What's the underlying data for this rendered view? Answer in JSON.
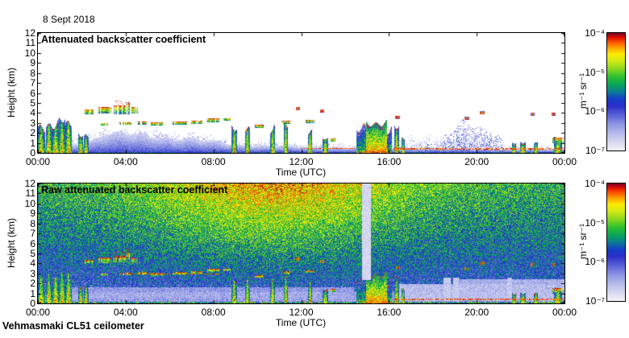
{
  "page": {
    "date_label": "8 Sept 2018",
    "footer": "Vehmasmaki CL51 ceilometer"
  },
  "chart_data": {
    "type": "heatmap",
    "x": {
      "label": "Time (UTC)",
      "ticks": [
        "00:00",
        "04:00",
        "08:00",
        "12:00",
        "16:00",
        "20:00",
        "00:00"
      ],
      "range_hours": [
        0,
        24
      ]
    },
    "y": {
      "label": "Height (km)",
      "ticks": [
        0,
        1,
        2,
        3,
        4,
        5,
        6,
        7,
        8,
        9,
        10,
        11,
        12
      ],
      "range_km": [
        0,
        12
      ]
    },
    "colorbar": {
      "tick_labels": [
        "10⁻⁴",
        "10⁻⁵",
        "10⁻⁶",
        "10⁻⁷"
      ],
      "unit": "m⁻¹ sr⁻¹",
      "scale": "log",
      "range": [
        1e-07,
        0.0001
      ]
    },
    "panels": [
      {
        "id": "top",
        "title": "Attenuated backscatter coefficient"
      },
      {
        "id": "bottom",
        "title": "Raw attenuated backscatter coefficient"
      }
    ],
    "colormap": [
      [
        0.0,
        "#f2f1f8"
      ],
      [
        0.06,
        "#dcdcf2"
      ],
      [
        0.14,
        "#b8bdec"
      ],
      [
        0.22,
        "#8f97e4"
      ],
      [
        0.3,
        "#5a62d8"
      ],
      [
        0.38,
        "#2b2fc8"
      ],
      [
        0.44,
        "#1440c8"
      ],
      [
        0.5,
        "#0a7d96"
      ],
      [
        0.56,
        "#0aa55a"
      ],
      [
        0.63,
        "#2fc22f"
      ],
      [
        0.7,
        "#8fd91e"
      ],
      [
        0.77,
        "#d8ea14"
      ],
      [
        0.82,
        "#fced06"
      ],
      [
        0.87,
        "#fdae00"
      ],
      [
        0.92,
        "#fc5d00"
      ],
      [
        0.96,
        "#e81600"
      ],
      [
        1.0,
        "#7e0024"
      ]
    ],
    "features": {
      "layer": {
        "solid": [
          [
            0,
            0.8
          ],
          [
            1.6,
            0.9
          ],
          [
            2.4,
            1.2
          ],
          [
            3.0,
            1.75
          ],
          [
            4.0,
            1.9
          ],
          [
            5.0,
            1.75
          ],
          [
            6.0,
            1.55
          ],
          [
            7.0,
            1.35
          ],
          [
            8.0,
            1.1
          ],
          [
            9.0,
            0.85
          ],
          [
            11,
            0.65
          ],
          [
            13,
            0.5
          ],
          [
            14.4,
            0.55
          ],
          [
            16.3,
            0.5
          ],
          [
            18,
            0.45
          ],
          [
            19.5,
            0.4
          ],
          [
            20.5,
            0.35
          ],
          [
            24,
            0.35
          ]
        ],
        "speckle": [
          [
            0,
            1.4
          ],
          [
            2,
            2.0
          ],
          [
            3,
            2.6
          ],
          [
            4.5,
            2.55
          ],
          [
            6,
            2.3
          ],
          [
            7,
            2.05
          ],
          [
            8,
            1.7
          ],
          [
            9,
            1.4
          ],
          [
            11,
            1.25
          ],
          [
            13,
            1.1
          ],
          [
            14.4,
            0.9
          ],
          [
            16.3,
            1.8
          ],
          [
            17.2,
            2.1
          ],
          [
            19,
            1.2
          ],
          [
            21,
            0.9
          ],
          [
            24,
            0.7
          ]
        ]
      },
      "virga": {
        "t0": 17.3,
        "t1": 21.3,
        "pts": [
          [
            17.3,
            0.6
          ],
          [
            18.2,
            1.2
          ],
          [
            19.0,
            2.2
          ],
          [
            19.5,
            3.3
          ],
          [
            19.9,
            2.8
          ],
          [
            20.6,
            2.5
          ],
          [
            21.0,
            1.9
          ],
          [
            21.3,
            0.8
          ]
        ]
      },
      "streaks": [
        {
          "t": 0.15,
          "w": 0.35,
          "top": 2.4
        },
        {
          "t": 0.5,
          "w": 0.3,
          "top": 3.0
        },
        {
          "t": 0.8,
          "w": 0.35,
          "top": 3.4
        },
        {
          "t": 1.1,
          "w": 0.3,
          "top": 3.5
        },
        {
          "t": 1.4,
          "w": 0.3,
          "top": 2.7
        },
        {
          "t": 1.95,
          "w": 0.25,
          "top": 2.2
        },
        {
          "t": 2.2,
          "w": 0.2,
          "top": 1.9
        },
        {
          "t": 8.95,
          "w": 0.25,
          "top": 2.9
        },
        {
          "t": 9.55,
          "w": 0.2,
          "top": 2.4
        },
        {
          "t": 10.7,
          "w": 0.22,
          "top": 2.9
        },
        {
          "t": 11.3,
          "w": 0.2,
          "top": 2.6
        },
        {
          "t": 12.4,
          "w": 0.2,
          "top": 2.1
        },
        {
          "t": 13.1,
          "w": 0.25,
          "top": 1.6
        },
        {
          "t": 16.35,
          "w": 0.22,
          "top": 3.4
        },
        {
          "t": 16.65,
          "w": 0.15,
          "top": 1.5
        },
        {
          "t": 21.7,
          "w": 0.2,
          "top": 1.2
        },
        {
          "t": 22.1,
          "w": 0.25,
          "top": 1.3
        },
        {
          "t": 22.7,
          "w": 0.18,
          "top": 0.9
        },
        {
          "t": 23.7,
          "w": 0.35,
          "top": 1.6
        }
      ],
      "clouds": [
        {
          "t0": 2.1,
          "t1": 2.55,
          "h0": 3.9,
          "h1": 4.35
        },
        {
          "t0": 2.75,
          "t1": 3.35,
          "h0": 3.95,
          "h1": 4.6
        },
        {
          "t0": 3.45,
          "t1": 4.0,
          "h0": 3.9,
          "h1": 4.75,
          "cap": 1
        },
        {
          "t0": 4.05,
          "t1": 4.2,
          "h0": 3.9,
          "h1": 5.05,
          "cap": 1
        },
        {
          "t0": 4.25,
          "t1": 4.55,
          "h0": 3.95,
          "h1": 4.6
        },
        {
          "t0": 2.85,
          "t1": 3.2,
          "h0": 2.75,
          "h1": 3.0
        },
        {
          "t0": 3.7,
          "t1": 4.25,
          "h0": 2.8,
          "h1": 3.05
        },
        {
          "t0": 4.55,
          "t1": 4.95,
          "h0": 2.85,
          "h1": 3.15
        },
        {
          "t0": 5.15,
          "t1": 5.75,
          "h0": 2.7,
          "h1": 3.05
        },
        {
          "t0": 6.1,
          "t1": 6.8,
          "h0": 2.85,
          "h1": 3.15
        },
        {
          "t0": 7.0,
          "t1": 7.5,
          "h0": 2.9,
          "h1": 3.2
        },
        {
          "t0": 7.7,
          "t1": 8.3,
          "h0": 3.1,
          "h1": 3.45
        },
        {
          "t0": 8.45,
          "t1": 8.8,
          "h0": 3.2,
          "h1": 3.5
        },
        {
          "t0": 9.9,
          "t1": 10.3,
          "h0": 2.5,
          "h1": 2.8
        },
        {
          "t0": 11.1,
          "t1": 11.55,
          "h0": 2.9,
          "h1": 3.2
        },
        {
          "t0": 12.2,
          "t1": 12.6,
          "h0": 3.0,
          "h1": 3.3
        },
        {
          "t0": 13.35,
          "t1": 13.6,
          "h0": 1.1,
          "h1": 1.45
        },
        {
          "t0": 23.45,
          "t1": 23.95,
          "h0": 1.0,
          "h1": 1.55
        }
      ],
      "dots": [
        {
          "t": 11.85,
          "h": 4.4
        },
        {
          "t": 12.95,
          "h": 4.15
        },
        {
          "t": 16.4,
          "h": 3.55
        },
        {
          "t": 19.55,
          "h": 3.5
        },
        {
          "t": 20.25,
          "h": 4.0
        },
        {
          "t": 22.55,
          "h": 3.9
        },
        {
          "t": 23.5,
          "h": 3.85
        }
      ],
      "precip": {
        "t0": 14.5,
        "t1": 16.15,
        "coreT0": 14.95,
        "coreT1": 15.9,
        "top": 3.3
      },
      "redlines_top": [
        {
          "t0": 12.0,
          "t1": 14.45,
          "h": 0.45
        },
        {
          "t0": 16.2,
          "t1": 23.95,
          "h": 0.4
        }
      ],
      "redlines_bottom": [
        {
          "t0": 16.2,
          "t1": 23.95,
          "h": 0.4
        },
        {
          "t0": 4.0,
          "t1": 8.3,
          "h": 2.95
        }
      ],
      "gap": {
        "t0": 14.78,
        "t1": 15.18,
        "hMin": 2.3
      },
      "pale_regions": [
        {
          "t0": 1.2,
          "t1": 14.4,
          "h0": 0.5,
          "h1": 1.6,
          "v": 0.14
        },
        {
          "t0": 16.3,
          "t1": 24,
          "h0": 0.25,
          "h1": 1.9,
          "v": 0.07
        },
        {
          "t0": 19.0,
          "t1": 24,
          "h0": 0.25,
          "h1": 2.4,
          "v": 0.1
        }
      ],
      "pale_columns": [
        {
          "t": 18.65,
          "w": 0.15
        },
        {
          "t": 19.05,
          "w": 0.12
        },
        {
          "t": 21.5,
          "w": 0.1
        }
      ],
      "noise": {
        "day_peak": 10.8,
        "day_sigma": 4.2
      }
    }
  }
}
